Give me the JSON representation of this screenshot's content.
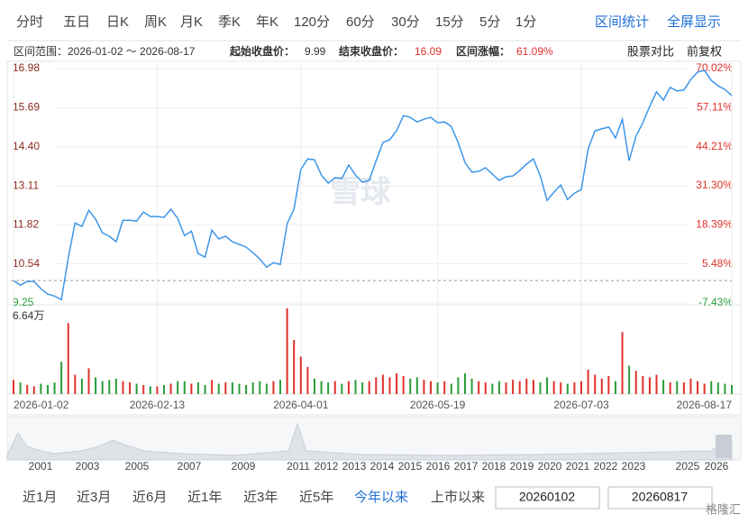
{
  "tabs": [
    "分时",
    "五日",
    "日K",
    "周K",
    "月K",
    "季K",
    "年K",
    "120分",
    "60分",
    "30分",
    "15分",
    "5分",
    "1分"
  ],
  "actions": [
    "区间统计",
    "全屏显示"
  ],
  "info": {
    "range": "区间范围：2026-01-02 ～ 2026-08-17",
    "start_label": "起始收盘价：",
    "start": "9.99",
    "end_label": "结束收盘价：",
    "end": "16.09",
    "change_label": "区间涨幅：",
    "change": "61.09%"
  },
  "tools": [
    "股票对比",
    "前复权"
  ],
  "watermark": "雪球",
  "chart_data": [
    {
      "type": "line",
      "categories": [
        "2026-01-02",
        null,
        null,
        null,
        null,
        null,
        null,
        null,
        null,
        null,
        null,
        null,
        null,
        null,
        null,
        null,
        null,
        null,
        null,
        null,
        null,
        "2026-02-13",
        null,
        null,
        null,
        null,
        null,
        null,
        null,
        null,
        null,
        null,
        null,
        null,
        null,
        null,
        null,
        null,
        null,
        null,
        null,
        null,
        "2026-04-01",
        null,
        null,
        null,
        null,
        null,
        null,
        null,
        null,
        null,
        null,
        null,
        null,
        null,
        null,
        null,
        null,
        null,
        null,
        null,
        "2026-05-19",
        null,
        null,
        null,
        null,
        null,
        null,
        null,
        null,
        null,
        null,
        null,
        null,
        null,
        null,
        null,
        null,
        null,
        null,
        null,
        null,
        "2026-07-03",
        null,
        null,
        null,
        null,
        null,
        null,
        null,
        null,
        null,
        null,
        null,
        null,
        null,
        null,
        null,
        null,
        null,
        null,
        null,
        null,
        null,
        "2026-08-17"
      ],
      "values": [
        9.99,
        9.84,
        9.96,
        9.96,
        9.72,
        9.54,
        9.48,
        9.36,
        10.73,
        11.89,
        11.77,
        12.31,
        12.01,
        11.56,
        11.45,
        11.27,
        11.98,
        11.98,
        11.95,
        12.25,
        12.1,
        12.1,
        12.07,
        12.34,
        12.04,
        11.47,
        11.62,
        10.88,
        10.76,
        11.65,
        11.36,
        11.45,
        11.27,
        11.18,
        11.09,
        10.91,
        10.7,
        10.43,
        10.58,
        10.52,
        11.86,
        12.34,
        13.65,
        14.0,
        13.97,
        13.47,
        13.2,
        13.38,
        13.35,
        13.8,
        13.47,
        13.23,
        13.29,
        13.94,
        14.54,
        14.63,
        14.93,
        15.43,
        15.37,
        15.22,
        15.31,
        15.37,
        15.19,
        15.22,
        15.07,
        14.54,
        13.88,
        13.56,
        13.59,
        13.71,
        13.5,
        13.29,
        13.41,
        13.44,
        13.62,
        13.83,
        14.0,
        13.44,
        12.63,
        12.9,
        13.14,
        12.66,
        12.87,
        12.99,
        14.33,
        14.93,
        14.99,
        15.05,
        14.69,
        15.31,
        13.94,
        14.75,
        15.19,
        15.73,
        16.21,
        15.94,
        16.36,
        16.24,
        16.27,
        16.62,
        16.86,
        16.92,
        16.59,
        16.41,
        16.29,
        16.09
      ],
      "color": "#3d96e8",
      "ylim": [
        9.25,
        16.98
      ],
      "yticks": [
        16.98,
        15.69,
        {
          "value": 14.4,
          "label": "14.40"
        },
        13.11,
        11.82,
        10.54,
        9.25
      ],
      "y2lim": [
        -7.43,
        70.02
      ],
      "y2ticks": [
        {
          "value": 70.02,
          "label": "70.02%"
        },
        {
          "value": 57.11,
          "label": "57.11%"
        },
        {
          "value": 44.21,
          "label": "44.21%"
        },
        {
          "value": 31.3,
          "label": "31.30%"
        },
        {
          "value": 18.39,
          "label": "18.39%"
        },
        {
          "value": 5.48,
          "label": "5.48%"
        },
        {
          "value": -7.43,
          "label": "-7.43%"
        }
      ],
      "reference_line": 9.99,
      "up_color": "#e0312b",
      "down_color": "#2a9d3a",
      "grid": true
    },
    {
      "type": "bar",
      "values": [
        1.1,
        0.9,
        0.7,
        0.6,
        0.8,
        0.7,
        0.9,
        2.5,
        5.5,
        1.5,
        1.2,
        2.0,
        1.3,
        1.0,
        1.1,
        1.2,
        1.0,
        0.9,
        0.8,
        0.7,
        0.6,
        0.6,
        0.7,
        0.8,
        1.0,
        1.0,
        0.8,
        0.9,
        0.7,
        1.1,
        0.8,
        0.9,
        0.9,
        0.8,
        0.7,
        0.9,
        1.0,
        0.8,
        1.0,
        1.1,
        6.64,
        4.2,
        2.9,
        2.1,
        1.2,
        1.0,
        0.9,
        1.0,
        0.8,
        1.0,
        1.1,
        0.9,
        1.0,
        1.3,
        1.5,
        1.3,
        1.6,
        1.4,
        1.2,
        1.3,
        1.1,
        1.0,
        0.9,
        1.0,
        0.8,
        1.3,
        1.6,
        1.2,
        1.0,
        0.9,
        0.8,
        1.0,
        0.9,
        1.1,
        1.0,
        1.2,
        1.1,
        0.9,
        1.3,
        1.0,
        0.9,
        0.8,
        0.9,
        1.0,
        1.9,
        1.5,
        1.2,
        1.4,
        1.0,
        4.8,
        2.2,
        1.8,
        1.4,
        1.3,
        1.5,
        1.1,
        0.9,
        1.0,
        0.9,
        1.2,
        1.0,
        0.8,
        1.0,
        0.9,
        0.8,
        0.7
      ],
      "ylim": [
        0,
        6.64
      ],
      "yticks": [
        {
          "value": 6.64,
          "label": "6.64万"
        }
      ],
      "up_color": "#e0312b",
      "down_color": "#2a9d3a"
    }
  ],
  "navigator": {
    "labels": [
      "2001",
      "2003",
      "2005",
      "2007",
      "2009",
      "2011",
      "2012",
      "2013",
      "2014",
      "2015",
      "2016",
      "2017",
      "2018",
      "2019",
      "2020",
      "2021",
      "2022",
      "2023",
      "2025",
      "2026"
    ]
  },
  "periods": [
    "近1月",
    "近3月",
    "近6月",
    "近1年",
    "近3年",
    "近5年",
    "今年以来",
    "上市以来"
  ],
  "active_period": 6,
  "date_inputs": [
    "20260102",
    "20260817"
  ],
  "brand": "格隆汇"
}
